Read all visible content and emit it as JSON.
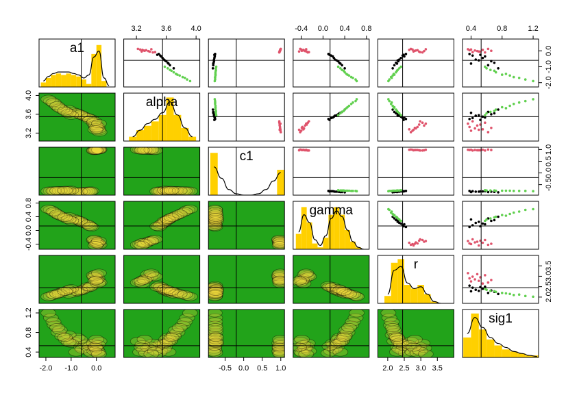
{
  "chart_data": {
    "type": "pairs",
    "hist_color": "#ffd000",
    "density_bg": "#22a31a",
    "density_color": "#f2dc3c",
    "variables": [
      {
        "name": "a1",
        "lim": [
          -2.27,
          0.74
        ],
        "ticks": [
          {
            "value": -2,
            "label": "-2.0"
          },
          {
            "value": -1,
            "label": "-1.0"
          },
          {
            "value": 0,
            "label": "0.0"
          }
        ],
        "reference": -0.6,
        "bins": [
          -2.2,
          -2.0,
          -1.8,
          -1.6,
          -1.4,
          -1.2,
          -1.0,
          -0.8,
          -0.6,
          -0.4,
          -0.2,
          0.0,
          0.2,
          0.4,
          0.6
        ],
        "counts": [
          3,
          6,
          8,
          9,
          8,
          9,
          8,
          7,
          5,
          2,
          22,
          28,
          4,
          0
        ],
        "density": [
          4,
          7,
          9,
          10,
          10,
          10,
          9,
          8,
          6,
          8,
          20,
          24,
          6,
          1
        ],
        "hist_ylim": [
          0,
          32
        ]
      },
      {
        "name": "alpha",
        "lim": [
          3.03,
          4.05
        ],
        "ticks": [
          3.2,
          3.6,
          {
            "value": 4,
            "label": "4.0"
          }
        ],
        "reference": 3.55,
        "bins": [
          3.1,
          3.2,
          3.3,
          3.4,
          3.5,
          3.6,
          3.7,
          3.8,
          3.9,
          4.0
        ],
        "counts": [
          2,
          5,
          7,
          9,
          12,
          20,
          12,
          6,
          2
        ],
        "density": [
          2,
          5,
          8,
          10,
          13,
          18,
          12,
          6,
          2
        ],
        "hist_ylim": [
          0,
          22
        ]
      },
      {
        "name": "c1",
        "lim": [
          -0.95,
          1.1
        ],
        "ticks": [
          -0.5,
          {
            "value": 0,
            "label": "0.0"
          },
          0.5,
          {
            "value": 1,
            "label": "1.0"
          }
        ],
        "reference": -0.2,
        "bins": [
          -0.9,
          -0.7,
          -0.5,
          -0.3,
          -0.1,
          0.1,
          0.3,
          0.5,
          0.7,
          0.9,
          1.1
        ],
        "counts": [
          30,
          0,
          0,
          0,
          0,
          0,
          0,
          0,
          0,
          18
        ],
        "density": [
          20,
          12,
          4,
          1,
          0,
          0,
          1,
          4,
          10,
          16
        ],
        "hist_ylim": [
          0,
          34
        ]
      },
      {
        "name": "gamma",
        "lim": [
          -0.55,
          0.85
        ],
        "ticks": [
          -0.4,
          {
            "value": 0,
            "label": "0.0"
          },
          0.4,
          0.8
        ],
        "reference": 0.13,
        "bins": [
          -0.5,
          -0.4,
          -0.3,
          -0.2,
          -0.1,
          0.0,
          0.1,
          0.2,
          0.3,
          0.4,
          0.5,
          0.6,
          0.7,
          0.8
        ],
        "counts": [
          8,
          22,
          14,
          3,
          1,
          6,
          18,
          22,
          18,
          10,
          4,
          1,
          0
        ],
        "density": [
          9,
          18,
          14,
          5,
          2,
          7,
          16,
          20,
          17,
          10,
          4,
          1,
          0
        ],
        "hist_ylim": [
          0,
          25
        ]
      },
      {
        "name": "r",
        "lim": [
          1.7,
          4.0
        ],
        "ticks": [
          {
            "value": 2,
            "label": "2.0"
          },
          2.5,
          {
            "value": 3,
            "label": "3.0"
          },
          3.5
        ],
        "reference": 2.45,
        "bins": [
          1.9,
          2.1,
          2.3,
          2.5,
          2.7,
          2.9,
          3.1,
          3.3,
          3.5,
          3.7
        ],
        "counts": [
          4,
          22,
          24,
          10,
          8,
          10,
          5,
          1,
          0
        ],
        "density": [
          5,
          18,
          20,
          11,
          8,
          9,
          5,
          1,
          0
        ],
        "hist_ylim": [
          0,
          26
        ]
      },
      {
        "name": "sig1",
        "lim": [
          0.29,
          1.27
        ],
        "ticks": [
          0.4,
          0.8,
          1.2
        ],
        "reference": 0.53,
        "bins": [
          0.3,
          0.4,
          0.5,
          0.6,
          0.7,
          0.8,
          0.9,
          1.0,
          1.1,
          1.2,
          1.3
        ],
        "counts": [
          10,
          22,
          14,
          9,
          6,
          4,
          3,
          2,
          1,
          1
        ],
        "density": [
          12,
          20,
          15,
          10,
          7,
          5,
          3,
          2,
          1,
          0.5
        ],
        "hist_ylim": [
          0,
          24
        ]
      }
    ],
    "groups": [
      {
        "color": "#000000",
        "values": [
          [
            -0.6,
            -0.3,
            -0.9,
            -0.45,
            -0.75,
            -0.2,
            -1.1,
            -0.55,
            -0.35,
            -0.8,
            -0.65,
            -0.25
          ],
          [
            3.58,
            3.52,
            3.65,
            3.55,
            3.62,
            3.5,
            3.7,
            3.57,
            3.53,
            3.63,
            3.6,
            3.48
          ],
          [
            -0.8,
            -0.78,
            -0.82,
            -0.79,
            -0.81,
            -0.77,
            -0.83,
            -0.8,
            -0.78,
            -0.82,
            -0.8,
            -0.79
          ],
          [
            0.25,
            0.15,
            0.35,
            0.2,
            0.3,
            0.1,
            0.4,
            0.22,
            0.18,
            0.32,
            0.28,
            0.12
          ],
          [
            2.3,
            2.45,
            2.2,
            2.4,
            2.25,
            2.55,
            2.15,
            2.35,
            2.5,
            2.28,
            2.32,
            2.48
          ],
          [
            0.5,
            0.42,
            0.62,
            0.55,
            0.7,
            0.38,
            0.75,
            0.46,
            0.58,
            0.4,
            0.66,
            0.52
          ]
        ]
      },
      {
        "color": "#61d04f",
        "values": [
          [
            -1.5,
            -1.2,
            -1.8,
            -1.35,
            -1.65,
            -1.0,
            -1.9,
            -1.45,
            -1.1,
            -1.7,
            -1.55,
            -1.25
          ],
          [
            3.75,
            3.65,
            3.88,
            3.7,
            3.82,
            3.58,
            3.92,
            3.73,
            3.62,
            3.85,
            3.78,
            3.67
          ],
          [
            -0.76,
            -0.75,
            -0.77,
            -0.76,
            -0.77,
            -0.74,
            -0.78,
            -0.76,
            -0.75,
            -0.77,
            -0.76,
            -0.75
          ],
          [
            0.45,
            0.35,
            0.6,
            0.4,
            0.52,
            0.28,
            0.62,
            0.43,
            0.32,
            0.55,
            0.48,
            0.38
          ],
          [
            2.2,
            2.3,
            2.05,
            2.25,
            2.1,
            2.4,
            2.02,
            2.18,
            2.35,
            2.12,
            2.15,
            2.28
          ],
          [
            0.8,
            0.65,
            1.1,
            0.72,
            0.95,
            0.58,
            1.2,
            0.85,
            0.6,
            1.02,
            0.9,
            0.7
          ]
        ]
      },
      {
        "color": "#df536b",
        "values": [
          [
            0.02,
            -0.05,
            0.08,
            -0.1,
            0.04,
            0.12,
            -0.02,
            0.06,
            -0.08,
            0.0,
            0.1,
            -0.04
          ],
          [
            3.3,
            3.38,
            3.25,
            3.42,
            3.33,
            3.22,
            3.36,
            3.28,
            3.45,
            3.31,
            3.4,
            3.27
          ],
          [
            0.98,
            0.97,
            0.99,
            0.96,
            0.98,
            1.0,
            0.97,
            0.99,
            0.96,
            0.98,
            0.99,
            0.97
          ],
          [
            -0.35,
            -0.3,
            -0.4,
            -0.28,
            -0.38,
            -0.42,
            -0.33,
            -0.36,
            -0.26,
            -0.39,
            -0.31,
            -0.44
          ],
          [
            2.85,
            2.95,
            2.75,
            3.05,
            2.9,
            2.7,
            3.1,
            2.65,
            2.98,
            2.82,
            3.15,
            2.78
          ],
          [
            0.45,
            0.52,
            0.4,
            0.58,
            0.38,
            0.62,
            0.48,
            0.55,
            0.42,
            0.66,
            0.36,
            0.5
          ]
        ]
      }
    ]
  }
}
